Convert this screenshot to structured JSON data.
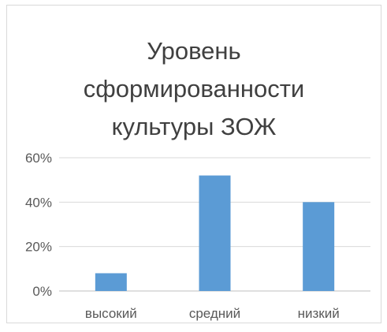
{
  "chart_data": {
    "type": "bar",
    "title_lines": [
      "Уровень",
      "сформированности",
      "культуры ЗОЖ"
    ],
    "categories": [
      "высокий",
      "средний",
      "низкий"
    ],
    "values": [
      8,
      52,
      40
    ],
    "ylim": [
      0,
      60
    ],
    "yticks": [
      "0%",
      "20%",
      "40%",
      "60%"
    ],
    "ytick_values": [
      0,
      20,
      40,
      60
    ],
    "grid": true,
    "legend": "none",
    "colors": {
      "bar": "#5b9bd5",
      "grid": "#d9d9d9",
      "axis": "#bfbfbf"
    }
  }
}
